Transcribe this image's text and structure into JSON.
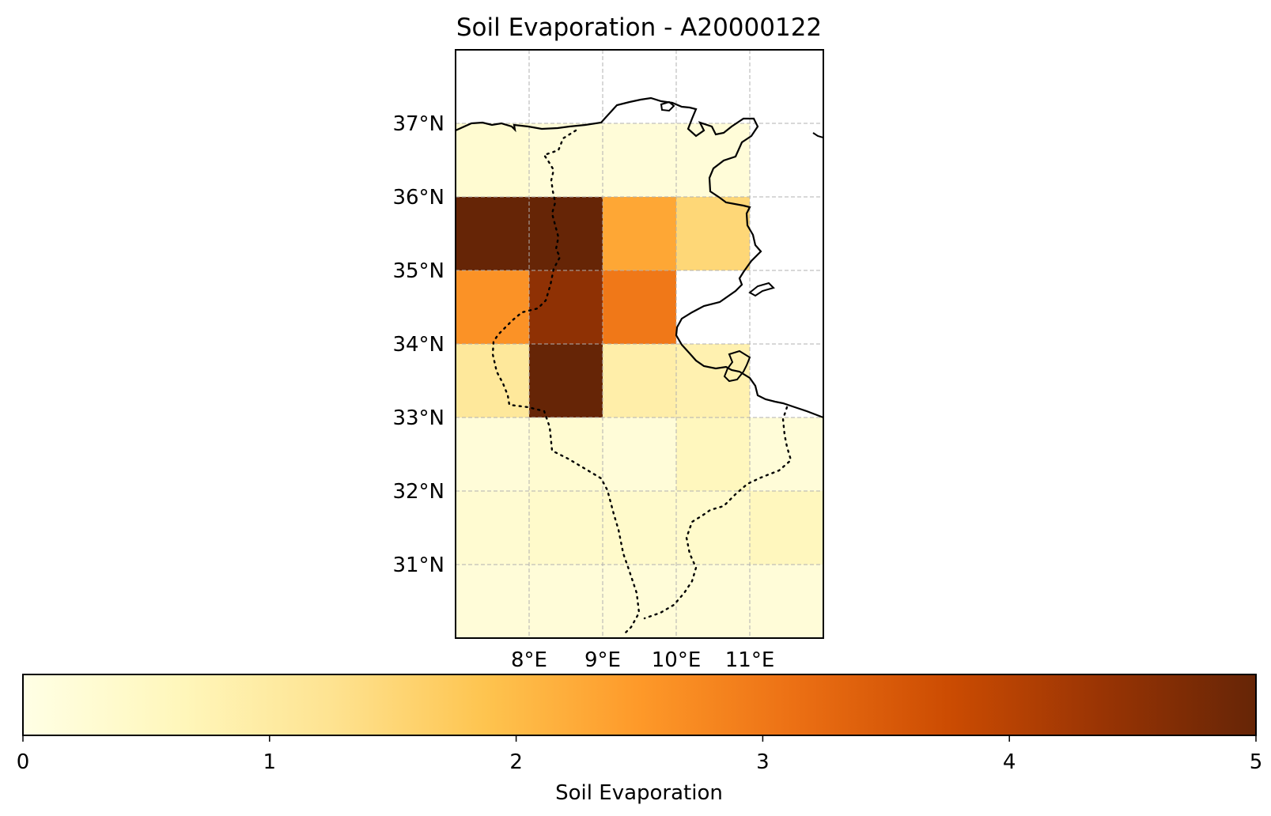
{
  "title": "Soil Evaporation - A20000122",
  "colorbar": {
    "label": "Soil Evaporation",
    "min": 0,
    "max": 5,
    "ticks": [
      "0",
      "1",
      "2",
      "3",
      "4",
      "5"
    ],
    "colormap": "YlOrBr",
    "stops": [
      "#ffffe5",
      "#fff7bc",
      "#fee391",
      "#fec44f",
      "#fe9929",
      "#ec7014",
      "#cc4c02",
      "#993404",
      "#662506"
    ]
  },
  "map": {
    "lon_range": [
      7.0,
      12.0
    ],
    "lat_range": [
      30.0,
      38.0
    ],
    "lon_ticks": [
      "8°E",
      "9°E",
      "10°E",
      "11°E"
    ],
    "lat_ticks": [
      "37°N",
      "36°N",
      "35°N",
      "34°N",
      "33°N",
      "32°N",
      "31°N"
    ],
    "gridlines": true,
    "coastline_color": "#000000",
    "border_style": "dotted"
  },
  "chart_data": {
    "type": "heatmap",
    "title": "Soil Evaporation - A20000122",
    "colorbar_label": "Soil Evaporation",
    "vmin": 0,
    "vmax": 5,
    "x_label": "",
    "y_label": "",
    "lon_cell_edges": [
      7,
      8,
      9,
      10,
      11,
      12
    ],
    "lat_cell_edges": [
      37,
      36,
      35,
      34,
      33,
      32,
      31,
      30
    ],
    "rows": [
      {
        "lat": "36-37",
        "values": [
          0.3,
          0.2,
          0.2,
          0.2,
          null
        ]
      },
      {
        "lat": "35-36",
        "values": [
          5.0,
          5.0,
          2.3,
          1.5,
          null
        ]
      },
      {
        "lat": "34-35",
        "values": [
          2.6,
          4.5,
          3.0,
          null,
          null
        ]
      },
      {
        "lat": "33-34",
        "values": [
          1.1,
          5.0,
          0.9,
          0.8,
          null
        ]
      },
      {
        "lat": "32-33",
        "values": [
          0.2,
          0.3,
          0.2,
          0.6,
          0.2
        ]
      },
      {
        "lat": "31-32",
        "values": [
          0.3,
          0.4,
          0.4,
          0.4,
          0.6
        ]
      },
      {
        "lat": "30-31",
        "values": [
          0.2,
          0.2,
          0.2,
          0.2,
          0.2
        ]
      }
    ]
  }
}
